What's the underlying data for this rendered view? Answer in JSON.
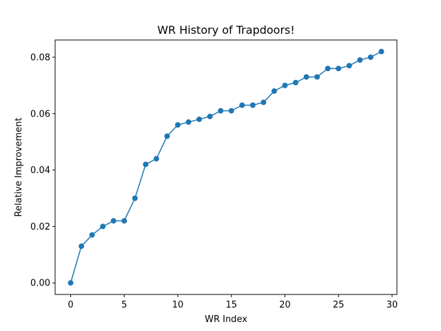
{
  "chart_data": {
    "type": "line",
    "title": "WR History of Trapdoors!",
    "xlabel": "WR Index",
    "ylabel": "Relative Improvement",
    "xlim": [
      -1.45,
      30.45
    ],
    "ylim": [
      -0.0041,
      0.0861
    ],
    "xticks": [
      0,
      5,
      10,
      15,
      20,
      25,
      30
    ],
    "xtick_labels": [
      "0",
      "5",
      "10",
      "15",
      "20",
      "25",
      "30"
    ],
    "yticks": [
      0.0,
      0.02,
      0.04,
      0.06,
      0.08
    ],
    "ytick_labels": [
      "0.00",
      "0.02",
      "0.04",
      "0.06",
      "0.08"
    ],
    "grid": false,
    "marker": "circle",
    "color": "#1f77b4",
    "series": [
      {
        "x": [
          0,
          1,
          2,
          3,
          4,
          5,
          6,
          7,
          8,
          9,
          10,
          11,
          12,
          13,
          14,
          15,
          16,
          17,
          18,
          19,
          20,
          21,
          22,
          23,
          24,
          25,
          26,
          27,
          28,
          29
        ],
        "values": [
          0.0,
          0.013,
          0.017,
          0.02,
          0.022,
          0.022,
          0.03,
          0.042,
          0.044,
          0.052,
          0.056,
          0.057,
          0.058,
          0.059,
          0.061,
          0.061,
          0.063,
          0.063,
          0.064,
          0.068,
          0.07,
          0.071,
          0.073,
          0.073,
          0.076,
          0.076,
          0.077,
          0.079,
          0.08,
          0.082
        ]
      }
    ]
  }
}
